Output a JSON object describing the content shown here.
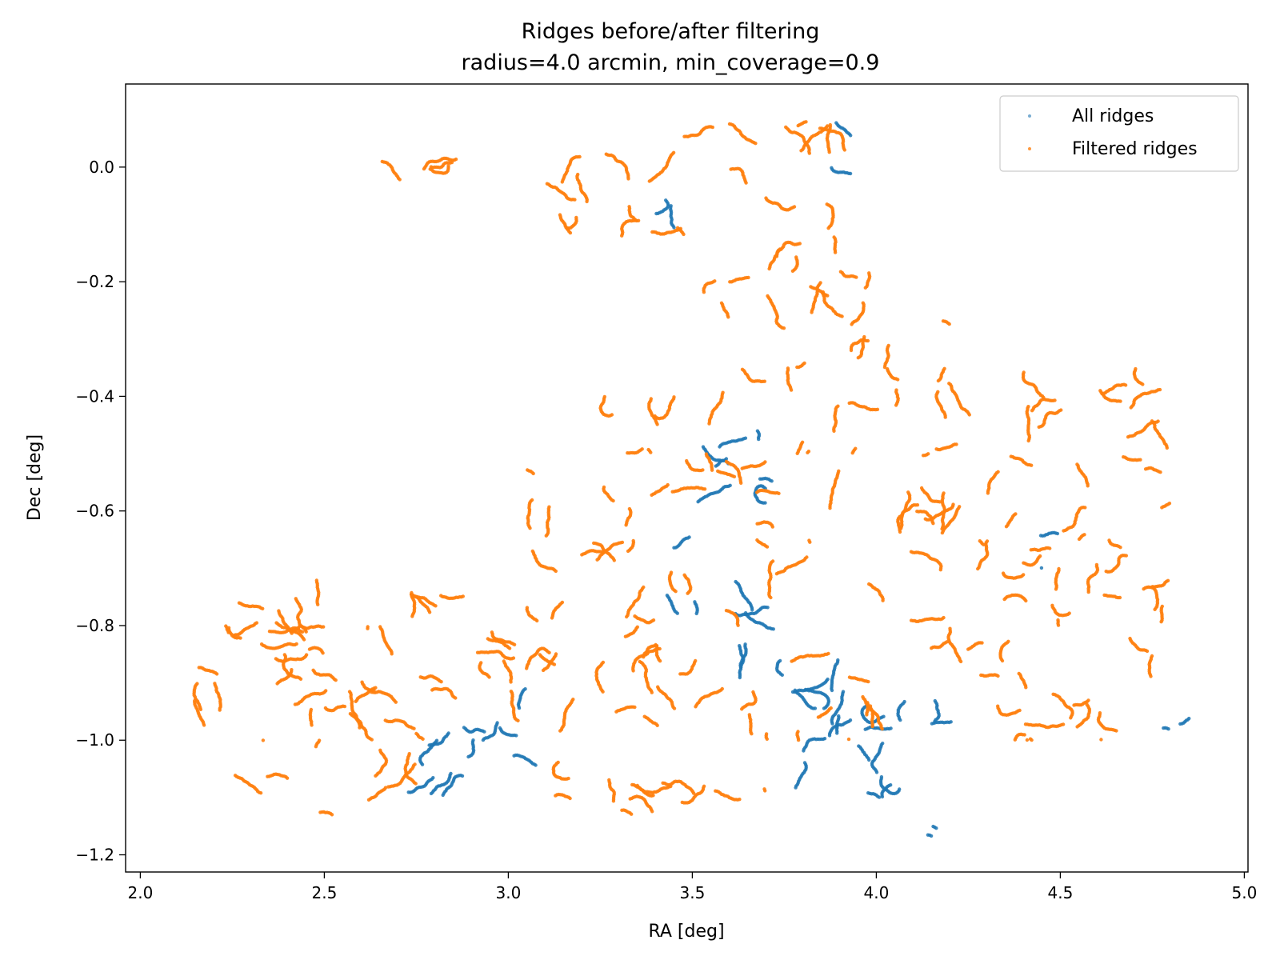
{
  "chart_data": {
    "type": "scatter",
    "title": "Ridges before/after filtering",
    "subtitle": "radius=4.0 arcmin, min_coverage=0.9",
    "xlabel": "RA [deg]",
    "ylabel": "Dec [deg]",
    "xlim": [
      1.96,
      5.01
    ],
    "ylim": [
      -1.23,
      0.145
    ],
    "xticks": [
      2.0,
      2.5,
      3.0,
      3.5,
      4.0,
      4.5,
      5.0
    ],
    "xtick_labels": [
      "2.0",
      "2.5",
      "3.0",
      "3.5",
      "4.0",
      "4.5",
      "5.0"
    ],
    "yticks": [
      0.0,
      -0.2,
      -0.4,
      -0.6,
      -0.8,
      -1.0,
      -1.2
    ],
    "ytick_labels": [
      "0.0",
      "−0.2",
      "−0.4",
      "−0.6",
      "−0.8",
      "−1.0",
      "−1.2"
    ],
    "grid": false,
    "legend_position": "top-right",
    "series": [
      {
        "name": "All ridges",
        "color": "#1f77b4",
        "regions": [
          {
            "ra": [
              2.72,
              3.1
            ],
            "dec": [
              -1.13,
              -0.96
            ]
          },
          {
            "ra": [
              2.85,
              3.05
            ],
            "dec": [
              -1.0,
              -0.9
            ]
          },
          {
            "ra": [
              3.42,
              3.72
            ],
            "dec": [
              -0.78,
              -0.46
            ]
          },
          {
            "ra": [
              3.6,
              3.78
            ],
            "dec": [
              -0.92,
              -0.74
            ]
          },
          {
            "ra": [
              3.66,
              4.08
            ],
            "dec": [
              -1.12,
              -0.86
            ]
          },
          {
            "ra": [
              3.95,
              4.2
            ],
            "dec": [
              -1.1,
              -0.98
            ]
          },
          {
            "ra": [
              4.15,
              4.4
            ],
            "dec": [
              -0.99,
              -0.93
            ]
          },
          {
            "ra": [
              4.44,
              4.5
            ],
            "dec": [
              -0.7,
              -0.63
            ]
          },
          {
            "ra": [
              4.78,
              4.88
            ],
            "dec": [
              -0.99,
              -0.96
            ]
          },
          {
            "ra": [
              3.87,
              3.93
            ],
            "dec": [
              -0.04,
              0.08
            ]
          },
          {
            "ra": [
              3.4,
              3.46
            ],
            "dec": [
              -0.11,
              -0.05
            ]
          },
          {
            "ra": [
              4.14,
              4.17
            ],
            "dec": [
              -1.17,
              -1.15
            ]
          }
        ]
      },
      {
        "name": "Filtered ridges",
        "color": "#ff7f0e",
        "regions": [
          {
            "ra": [
              2.4,
              3.1
            ],
            "dec": [
              -0.03,
              0.03
            ]
          },
          {
            "ra": [
              3.1,
              3.92
            ],
            "dec": [
              -0.12,
              0.08
            ]
          },
          {
            "ra": [
              3.5,
              3.92
            ],
            "dec": [
              -0.2,
              -0.12
            ]
          },
          {
            "ra": [
              3.5,
              4.2
            ],
            "dec": [
              -0.35,
              -0.18
            ]
          },
          {
            "ra": [
              3.25,
              4.8
            ],
            "dec": [
              -0.5,
              -0.35
            ]
          },
          {
            "ra": [
              3.05,
              4.8
            ],
            "dec": [
              -0.65,
              -0.5
            ]
          },
          {
            "ra": [
              3.02,
              4.85
            ],
            "dec": [
              -0.8,
              -0.65
            ]
          },
          {
            "ra": [
              2.2,
              3.02
            ],
            "dec": [
              -0.85,
              -0.72
            ]
          },
          {
            "ra": [
              2.1,
              4.86
            ],
            "dec": [
              -1.0,
              -0.8
            ]
          },
          {
            "ra": [
              2.2,
              2.75
            ],
            "dec": [
              -1.13,
              -1.0
            ]
          },
          {
            "ra": [
              3.05,
              3.7
            ],
            "dec": [
              -1.13,
              -1.0
            ]
          },
          {
            "ra": [
              4.3,
              4.86
            ],
            "dec": [
              -1.0,
              -0.92
            ]
          }
        ]
      }
    ]
  }
}
